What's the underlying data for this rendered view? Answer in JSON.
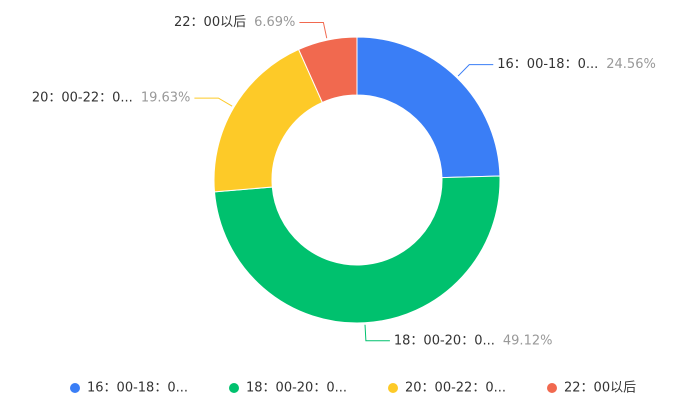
{
  "chart_data": {
    "type": "pie",
    "categories": [
      "16：00-18：0...",
      "18：00-20：0...",
      "20：00-22：0...",
      "22：00以后"
    ],
    "values": [
      24.56,
      49.12,
      19.63,
      6.69
    ],
    "value_labels": [
      "24.56%",
      "49.12%",
      "19.63%",
      "6.69%"
    ],
    "colors": [
      "#3a7ef6",
      "#00c16e",
      "#fdca28",
      "#f1694f"
    ],
    "legend": "bottom"
  }
}
